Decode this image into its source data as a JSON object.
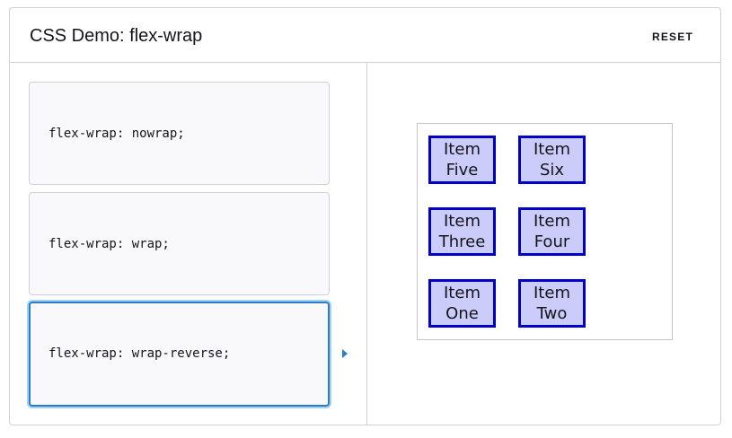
{
  "demo": {
    "title": "CSS Demo: flex-wrap",
    "reset_label": "RESET"
  },
  "choices": [
    {
      "code": "flex-wrap: nowrap;",
      "selected": false
    },
    {
      "code": "flex-wrap: wrap;",
      "selected": false
    },
    {
      "code": "flex-wrap: wrap-reverse;",
      "selected": true
    }
  ],
  "items": [
    {
      "line1": "Item",
      "line2": "One"
    },
    {
      "line1": "Item",
      "line2": "Two"
    },
    {
      "line1": "Item",
      "line2": "Three"
    },
    {
      "line1": "Item",
      "line2": "Four"
    },
    {
      "line1": "Item",
      "line2": "Five"
    },
    {
      "line1": "Item",
      "line2": "Six"
    }
  ],
  "colors": {
    "accent": "#2d7cc6",
    "item_border": "#0000c8",
    "item_fill": "#ccccfb",
    "choice_bg": "#f9f9fb",
    "panel_border": "#cfcfd8"
  },
  "icons": {
    "selection_indicator": "triangle-right-icon"
  }
}
